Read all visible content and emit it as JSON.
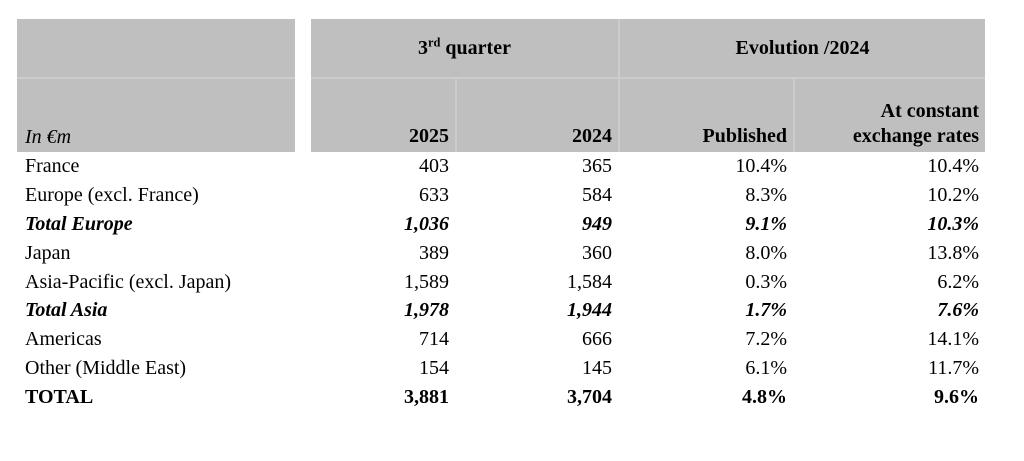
{
  "colors": {
    "header_bg": "#bfbfbf",
    "divider": "#cccccc",
    "text": "#000000",
    "page_bg": "#ffffff"
  },
  "header": {
    "unit_label": "In €m",
    "group_quarter": {
      "num": "3",
      "ordinal": "rd",
      "rest": " quarter"
    },
    "group_evolution": "Evolution /2024",
    "col_2025": "2025",
    "col_2024": "2024",
    "col_published": "Published",
    "col_constant_line1": "At constant",
    "col_constant_line2": "exchange rates"
  },
  "rows": [
    {
      "label": "France",
      "q2025": "403",
      "q2024": "365",
      "published": "10.4%",
      "constant": "10.4%",
      "style": "normal"
    },
    {
      "label": "Europe (excl. France)",
      "q2025": "633",
      "q2024": "584",
      "published": "8.3%",
      "constant": "10.2%",
      "style": "normal"
    },
    {
      "label": "Total Europe",
      "q2025": "1,036",
      "q2024": "949",
      "published": "9.1%",
      "constant": "10.3%",
      "style": "subtotal"
    },
    {
      "label": "Japan",
      "q2025": "389",
      "q2024": "360",
      "published": "8.0%",
      "constant": "13.8%",
      "style": "normal"
    },
    {
      "label": "Asia-Pacific (excl. Japan)",
      "q2025": "1,589",
      "q2024": "1,584",
      "published": "0.3%",
      "constant": "6.2%",
      "style": "normal"
    },
    {
      "label": "Total Asia",
      "q2025": "1,978",
      "q2024": "1,944",
      "published": "1.7%",
      "constant": "7.6%",
      "style": "subtotal"
    },
    {
      "label": "Americas",
      "q2025": "714",
      "q2024": "666",
      "published": "7.2%",
      "constant": "14.1%",
      "style": "normal"
    },
    {
      "label": "Other (Middle East)",
      "q2025": "154",
      "q2024": "145",
      "published": "6.1%",
      "constant": "11.7%",
      "style": "normal"
    },
    {
      "label": "TOTAL",
      "q2025": "3,881",
      "q2024": "3,704",
      "published": "4.8%",
      "constant": "9.6%",
      "style": "total"
    }
  ]
}
